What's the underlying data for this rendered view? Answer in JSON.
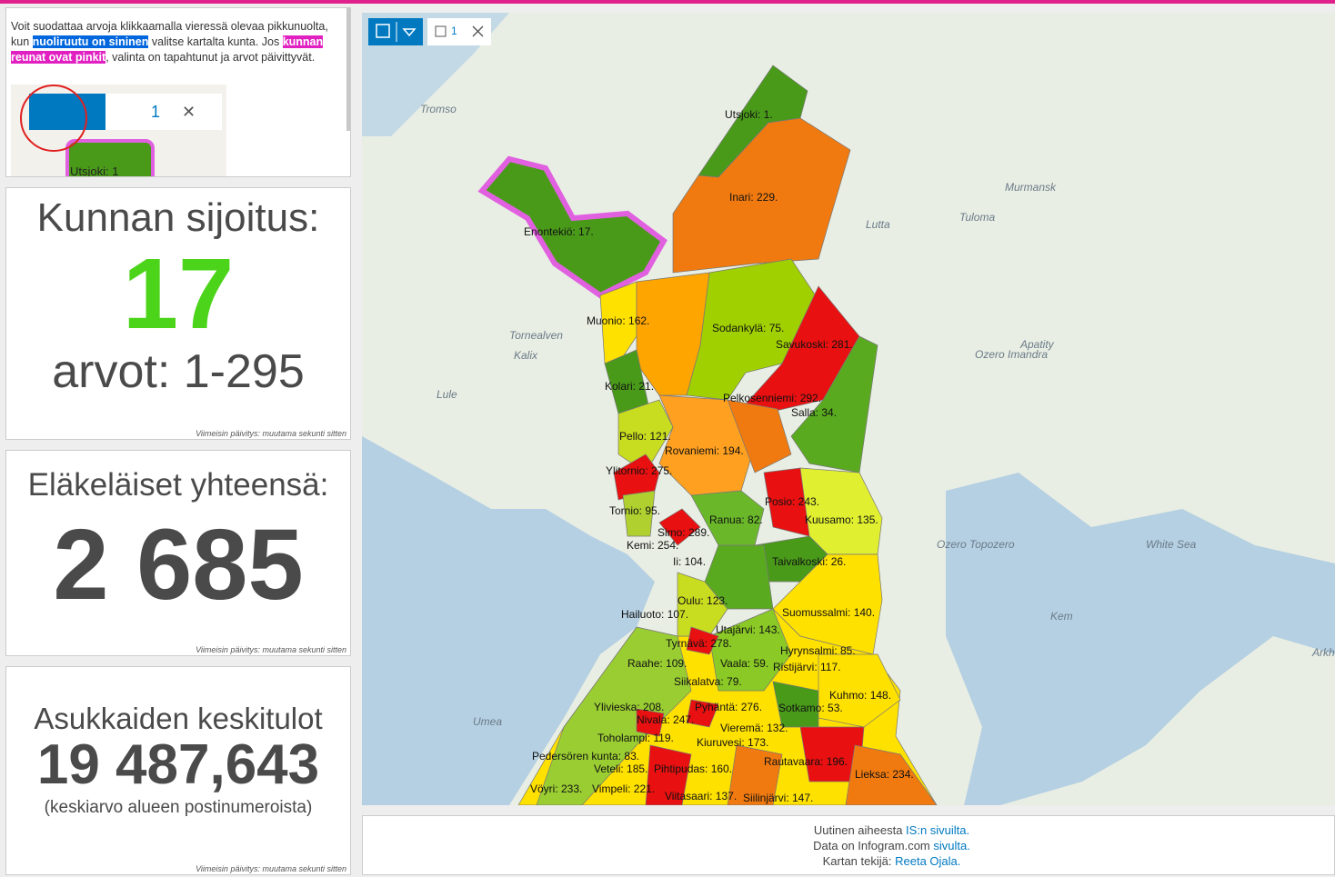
{
  "intro": {
    "parts": [
      "Voit suodattaa arvoja klikkaamalla vieressä olevaa pikkunuolta, kun ",
      "nuoliruutu on sininen",
      " valitse kartalta kunta. Jos ",
      "kunnan reunat ovat pinkit",
      ", valinta on tapahtunut ja arvot päivittyvät."
    ],
    "image_count": "1",
    "image_label": "Utsjoki: 1"
  },
  "panels": [
    {
      "title": "Kunnan sijoitus:",
      "value": "17",
      "subtitle": "arvot: 1-295",
      "footnote": "Viimeisin päivitys: muutama sekunti sitten"
    },
    {
      "title": "Eläkeläiset yhteensä:",
      "value": "2 685",
      "footnote": "Viimeisin päivitys: muutama sekunti sitten"
    },
    {
      "title": "Asukkaiden keskitulot",
      "value": "19 487,643",
      "subtitle": "(keskiarvo alueen postinumeroista)",
      "footnote": "Viimeisin päivitys: muutama sekunti sitten"
    }
  ],
  "map": {
    "selection_count": "1",
    "labels": [
      "Utsjoki: 1.",
      "Inari: 229.",
      "Enontekiö: 17.",
      "Muonio: 162.",
      "Sodankylä: 75.",
      "Savukoski: 281.",
      "Kolari: 21.",
      "Pelkosenniemi: 292.",
      "Salla: 34.",
      "Pello: 121.",
      "Rovaniemi: 194.",
      "Ylitornio: 275.",
      "Posio: 243.",
      "Tornio: 95.",
      "Ranua: 82.",
      "Kuusamo: 135.",
      "Simo: 289.",
      "Kemi: 254.",
      "Ii: 104.",
      "Taivalkoski: 26.",
      "Oulu: 123.",
      "Suomussalmi: 140.",
      "Hailuoto: 107.",
      "Utajärvi: 143.",
      "Tyrnävä: 278.",
      "Hyrynsalmi: 85.",
      "Raahe: 109.",
      "Vaala: 59.",
      "Ristijärvi: 117.",
      "Siikalatva: 79.",
      "Kuhmo: 148.",
      "Ylivieska: 208.",
      "Pyhäntä: 276.",
      "Sotkamo: 53.",
      "Nivala: 247.",
      "Vieremä: 132.",
      "Toholampi: 119.",
      "Kiuruvesi: 173.",
      "Pedersören kunta: 83.",
      "Rautavaara: 196.",
      "Veteli: 185.",
      "Pihtipudas: 160.",
      "Lieksa: 234.",
      "Vöyri: 233.",
      "Vimpeli: 221.",
      "Viitasaari: 137.",
      "Siilinjärvi: 147."
    ],
    "places": [
      "Tromso",
      "Murmansk",
      "Apatity",
      "Ozero Imandra",
      "White Sea",
      "Umea",
      "Kem",
      "Ozero Topozero",
      "Arkh",
      "Tornealven",
      "Kalix",
      "Lule",
      "Lutta",
      "Tuloma"
    ]
  },
  "footer": {
    "lines": [
      [
        "Uutinen aiheesta ",
        "IS:n sivuilta."
      ],
      [
        "Data on Infogram.com ",
        "sivulta."
      ],
      [
        "Kartan tekijä: ",
        "Reeta Ojala."
      ]
    ]
  }
}
